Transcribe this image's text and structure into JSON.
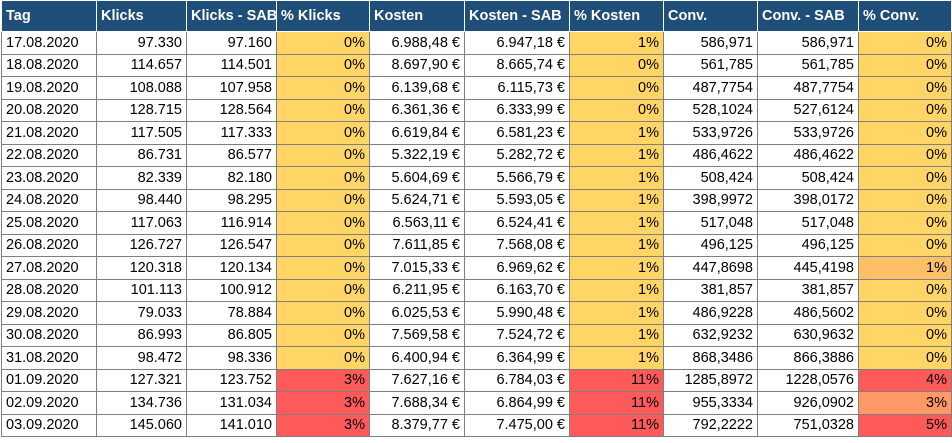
{
  "columns": [
    "Tag",
    "Klicks",
    "Klicks - SAB",
    "% Klicks",
    "Kosten",
    "Kosten - SAB",
    "% Kosten",
    "Conv.",
    "Conv. - SAB",
    "% Conv."
  ],
  "rows": [
    {
      "tag": "17.08.2020",
      "klicks": "97.330",
      "klicks_sab": "97.160",
      "pct_klicks": "0%",
      "kosten": "6.988,48 €",
      "kosten_sab": "6.947,18 €",
      "pct_kosten": "1%",
      "conv": "586,971",
      "conv_sab": "586,971",
      "pct_conv": "0%"
    },
    {
      "tag": "18.08.2020",
      "klicks": "114.657",
      "klicks_sab": "114.501",
      "pct_klicks": "0%",
      "kosten": "8.697,90 €",
      "kosten_sab": "8.665,74 €",
      "pct_kosten": "0%",
      "conv": "561,785",
      "conv_sab": "561,785",
      "pct_conv": "0%"
    },
    {
      "tag": "19.08.2020",
      "klicks": "108.088",
      "klicks_sab": "107.958",
      "pct_klicks": "0%",
      "kosten": "6.139,68 €",
      "kosten_sab": "6.115,73 €",
      "pct_kosten": "0%",
      "conv": "487,7754",
      "conv_sab": "487,7754",
      "pct_conv": "0%"
    },
    {
      "tag": "20.08.2020",
      "klicks": "128.715",
      "klicks_sab": "128.564",
      "pct_klicks": "0%",
      "kosten": "6.361,36 €",
      "kosten_sab": "6.333,99 €",
      "pct_kosten": "0%",
      "conv": "528,1024",
      "conv_sab": "527,6124",
      "pct_conv": "0%"
    },
    {
      "tag": "21.08.2020",
      "klicks": "117.505",
      "klicks_sab": "117.333",
      "pct_klicks": "0%",
      "kosten": "6.619,84 €",
      "kosten_sab": "6.581,23 €",
      "pct_kosten": "1%",
      "conv": "533,9726",
      "conv_sab": "533,9726",
      "pct_conv": "0%"
    },
    {
      "tag": "22.08.2020",
      "klicks": "86.731",
      "klicks_sab": "86.577",
      "pct_klicks": "0%",
      "kosten": "5.322,19 €",
      "kosten_sab": "5.282,72 €",
      "pct_kosten": "1%",
      "conv": "486,4622",
      "conv_sab": "486,4622",
      "pct_conv": "0%"
    },
    {
      "tag": "23.08.2020",
      "klicks": "82.339",
      "klicks_sab": "82.180",
      "pct_klicks": "0%",
      "kosten": "5.604,69 €",
      "kosten_sab": "5.566,79 €",
      "pct_kosten": "1%",
      "conv": "508,424",
      "conv_sab": "508,424",
      "pct_conv": "0%"
    },
    {
      "tag": "24.08.2020",
      "klicks": "98.440",
      "klicks_sab": "98.295",
      "pct_klicks": "0%",
      "kosten": "5.624,71 €",
      "kosten_sab": "5.593,05 €",
      "pct_kosten": "1%",
      "conv": "398,9972",
      "conv_sab": "398,0172",
      "pct_conv": "0%"
    },
    {
      "tag": "25.08.2020",
      "klicks": "117.063",
      "klicks_sab": "116.914",
      "pct_klicks": "0%",
      "kosten": "6.563,11 €",
      "kosten_sab": "6.524,41 €",
      "pct_kosten": "1%",
      "conv": "517,048",
      "conv_sab": "517,048",
      "pct_conv": "0%"
    },
    {
      "tag": "26.08.2020",
      "klicks": "126.727",
      "klicks_sab": "126.547",
      "pct_klicks": "0%",
      "kosten": "7.611,85 €",
      "kosten_sab": "7.568,08 €",
      "pct_kosten": "1%",
      "conv": "496,125",
      "conv_sab": "496,125",
      "pct_conv": "0%"
    },
    {
      "tag": "27.08.2020",
      "klicks": "120.318",
      "klicks_sab": "120.134",
      "pct_klicks": "0%",
      "kosten": "7.015,33 €",
      "kosten_sab": "6.969,62 €",
      "pct_kosten": "1%",
      "conv": "447,8698",
      "conv_sab": "445,4198",
      "pct_conv": "1%"
    },
    {
      "tag": "28.08.2020",
      "klicks": "101.113",
      "klicks_sab": "100.912",
      "pct_klicks": "0%",
      "kosten": "6.211,95 €",
      "kosten_sab": "6.163,70 €",
      "pct_kosten": "1%",
      "conv": "381,857",
      "conv_sab": "381,857",
      "pct_conv": "0%"
    },
    {
      "tag": "29.08.2020",
      "klicks": "79.033",
      "klicks_sab": "78.884",
      "pct_klicks": "0%",
      "kosten": "6.025,53 €",
      "kosten_sab": "5.990,48 €",
      "pct_kosten": "1%",
      "conv": "486,9228",
      "conv_sab": "486,5602",
      "pct_conv": "0%"
    },
    {
      "tag": "30.08.2020",
      "klicks": "86.993",
      "klicks_sab": "86.805",
      "pct_klicks": "0%",
      "kosten": "7.569,58 €",
      "kosten_sab": "7.524,72 €",
      "pct_kosten": "1%",
      "conv": "632,9232",
      "conv_sab": "630,9632",
      "pct_conv": "0%"
    },
    {
      "tag": "31.08.2020",
      "klicks": "98.472",
      "klicks_sab": "98.336",
      "pct_klicks": "0%",
      "kosten": "6.400,94 €",
      "kosten_sab": "6.364,99 €",
      "pct_kosten": "1%",
      "conv": "868,3486",
      "conv_sab": "866,3886",
      "pct_conv": "0%"
    },
    {
      "tag": "01.09.2020",
      "klicks": "127.321",
      "klicks_sab": "123.752",
      "pct_klicks": "3%",
      "kosten": "7.627,16 €",
      "kosten_sab": "6.784,03 €",
      "pct_kosten": "11%",
      "conv": "1285,8972",
      "conv_sab": "1228,0576",
      "pct_conv": "4%"
    },
    {
      "tag": "02.09.2020",
      "klicks": "134.736",
      "klicks_sab": "131.034",
      "pct_klicks": "3%",
      "kosten": "7.688,34 €",
      "kosten_sab": "6.864,99 €",
      "pct_kosten": "11%",
      "conv": "955,3334",
      "conv_sab": "926,0902",
      "pct_conv": "3%"
    },
    {
      "tag": "03.09.2020",
      "klicks": "145.060",
      "klicks_sab": "141.010",
      "pct_klicks": "3%",
      "kosten": "8.379,77 €",
      "kosten_sab": "7.475,00 €",
      "pct_kosten": "11%",
      "conv": "792,2222",
      "conv_sab": "751,0328",
      "pct_conv": "5%"
    }
  ],
  "colors": {
    "header_bg": "#1f4e79",
    "pct_low": "#ffd666",
    "pct_mild": "#ffbf66",
    "pct_mid": "#ff9966",
    "pct_high": "#ff5a5a"
  }
}
